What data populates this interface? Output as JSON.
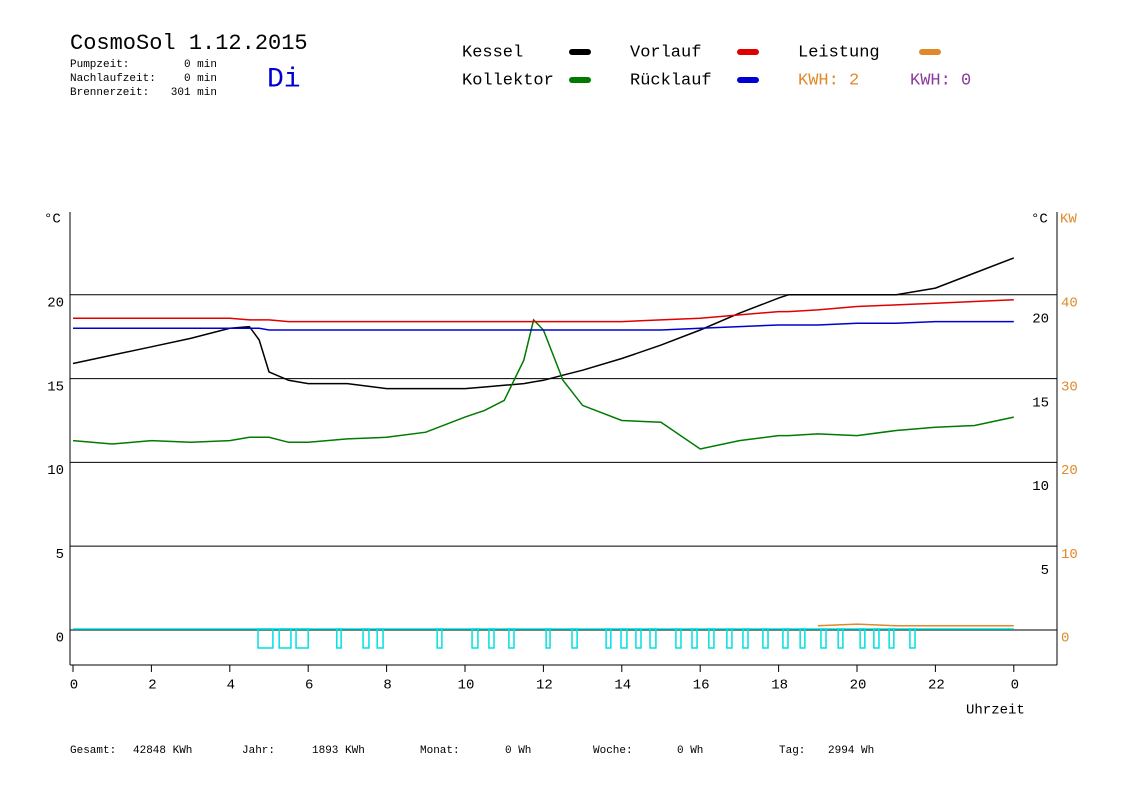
{
  "chart_data": {
    "type": "line",
    "title": "CosmoSol 1.12.2015",
    "weekday": "Di",
    "times": [
      {
        "label": "Pumpzeit:",
        "value": "0 min"
      },
      {
        "label": "Nachlaufzeit:",
        "value": "0 min"
      },
      {
        "label": "Brennerzeit:",
        "value": "301 min"
      }
    ],
    "kwh_labels": [
      {
        "text": "KWH: 2",
        "color": "#e0892a"
      },
      {
        "text": "KWH: 0",
        "color": "#8a3a9a"
      }
    ],
    "y_label": "°C",
    "y_right_label": "°C",
    "y2_label": "KW",
    "x_label": "Uhrzeit",
    "x": [
      0,
      1,
      2,
      3,
      4,
      4.5,
      4.75,
      5,
      5.5,
      6,
      7,
      8,
      9,
      10,
      10.5,
      11,
      11.5,
      11.75,
      12,
      12.5,
      13,
      14,
      15,
      16,
      17,
      18,
      18.25,
      19,
      20,
      21,
      22,
      23,
      24
    ],
    "series": [
      {
        "name": "Kessel",
        "color": "#000000",
        "values": [
          15.9,
          16.4,
          16.9,
          17.4,
          18.0,
          18.1,
          17.3,
          15.4,
          14.9,
          14.7,
          14.7,
          14.4,
          14.4,
          14.4,
          14.5,
          14.6,
          14.7,
          14.8,
          14.9,
          15.2,
          15.5,
          16.2,
          17.0,
          17.9,
          18.9,
          19.8,
          20.0,
          20.0,
          20.0,
          20.0,
          20.4,
          21.3,
          22.2
        ]
      },
      {
        "name": "Kollektor",
        "color": "#007a00",
        "values": [
          11.3,
          11.1,
          11.3,
          11.2,
          11.3,
          11.5,
          11.5,
          11.5,
          11.2,
          11.2,
          11.4,
          11.5,
          11.8,
          12.7,
          13.1,
          13.7,
          16.1,
          18.5,
          17.9,
          14.9,
          13.4,
          12.5,
          12.4,
          10.8,
          11.3,
          11.6,
          11.6,
          11.7,
          11.6,
          11.9,
          12.1,
          12.2,
          12.7
        ]
      },
      {
        "name": "Vorlauf",
        "color": "#e00000",
        "values": [
          18.6,
          18.6,
          18.6,
          18.6,
          18.6,
          18.5,
          18.5,
          18.5,
          18.4,
          18.4,
          18.4,
          18.4,
          18.4,
          18.4,
          18.4,
          18.4,
          18.4,
          18.4,
          18.4,
          18.4,
          18.4,
          18.4,
          18.5,
          18.6,
          18.8,
          19.0,
          19.0,
          19.1,
          19.3,
          19.4,
          19.5,
          19.6,
          19.7
        ]
      },
      {
        "name": "Rücklauf",
        "color": "#0000d0",
        "values": [
          18.0,
          18.0,
          18.0,
          18.0,
          18.0,
          18.0,
          18.0,
          17.9,
          17.9,
          17.9,
          17.9,
          17.9,
          17.9,
          17.9,
          17.9,
          17.9,
          17.9,
          17.9,
          17.9,
          17.9,
          17.9,
          17.9,
          17.9,
          18.0,
          18.1,
          18.2,
          18.2,
          18.2,
          18.3,
          18.3,
          18.4,
          18.4,
          18.4
        ]
      },
      {
        "name": "Leistung",
        "color": "#e0892a",
        "axis": "y2",
        "values": [
          null,
          null,
          null,
          null,
          null,
          null,
          null,
          null,
          null,
          null,
          null,
          null,
          null,
          null,
          null,
          null,
          null,
          null,
          null,
          null,
          null,
          null,
          null,
          null,
          null,
          null,
          null,
          0.5,
          0.7,
          0.5,
          0.5,
          0.5,
          0.5
        ]
      }
    ],
    "pump_on": [
      [
        4.72,
        5.1
      ],
      [
        5.26,
        5.56
      ],
      [
        5.69,
        6.0
      ],
      [
        6.73,
        6.84
      ],
      [
        7.4,
        7.55
      ],
      [
        7.76,
        7.91
      ],
      [
        9.29,
        9.41
      ],
      [
        10.18,
        10.33
      ],
      [
        10.61,
        10.74
      ],
      [
        11.12,
        11.25
      ],
      [
        12.07,
        12.17
      ],
      [
        12.73,
        12.86
      ],
      [
        13.6,
        13.72
      ],
      [
        13.98,
        14.13
      ],
      [
        14.36,
        14.49
      ],
      [
        14.72,
        14.87
      ],
      [
        15.38,
        15.51
      ],
      [
        15.79,
        15.92
      ],
      [
        16.22,
        16.35
      ],
      [
        16.68,
        16.81
      ],
      [
        17.09,
        17.22
      ],
      [
        17.6,
        17.73
      ],
      [
        18.11,
        18.24
      ],
      [
        18.55,
        18.67
      ],
      [
        19.08,
        19.21
      ],
      [
        19.52,
        19.64
      ],
      [
        20.08,
        20.2
      ],
      [
        20.43,
        20.56
      ],
      [
        20.82,
        20.94
      ],
      [
        21.35,
        21.48
      ]
    ],
    "pump_color": "#00e0e0",
    "xlim": [
      0,
      25
    ],
    "xticks": [
      0,
      2,
      4,
      6,
      8,
      10,
      12,
      14,
      16,
      18,
      20,
      22,
      {
        "value": 24,
        "label": "0"
      }
    ],
    "ylim": [
      -2,
      25
    ],
    "yticks": [
      0,
      5,
      10,
      15,
      20
    ],
    "y_right_ticks": [
      5,
      10,
      15,
      20
    ],
    "y2lim": [
      -4,
      50
    ],
    "y2ticks": [
      0,
      10,
      20,
      30,
      40
    ],
    "y2_color": "#e0892a",
    "grid": true,
    "stats": [
      {
        "label": "Gesamt:",
        "value": "42848 KWh"
      },
      {
        "label": "Jahr:",
        "value": "1893 KWh"
      },
      {
        "label": "Monat:",
        "value": "0 Wh"
      },
      {
        "label": "Woche:",
        "value": "0 Wh"
      },
      {
        "label": "Tag:",
        "value": "2994 Wh"
      }
    ]
  }
}
